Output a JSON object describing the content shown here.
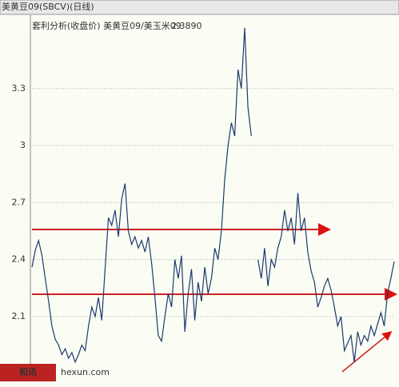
{
  "chart_data": {
    "type": "line",
    "header": "美黄豆09(SBCV)(日线)",
    "subtitle": "套利分析(收盘价) 美黄豆09/美玉米09",
    "last_value": "2.3890",
    "logo": "和讯",
    "watermark": "hexun.com",
    "color": "#1a3a6e",
    "values": [
      2.36,
      2.45,
      2.5,
      2.42,
      2.3,
      2.18,
      2.05,
      1.98,
      1.95,
      1.9,
      1.93,
      1.88,
      1.91,
      1.86,
      1.9,
      1.95,
      1.92,
      2.05,
      2.15,
      2.1,
      2.2,
      2.08,
      2.35,
      2.62,
      2.58,
      2.66,
      2.52,
      2.72,
      2.8,
      2.55,
      2.48,
      2.52,
      2.46,
      2.5,
      2.44,
      2.52,
      2.38,
      2.2,
      2.0,
      1.97,
      2.1,
      2.22,
      2.15,
      2.4,
      2.3,
      2.42,
      2.02,
      2.22,
      2.35,
      2.08,
      2.28,
      2.18,
      2.36,
      2.22,
      2.3,
      2.46,
      2.4,
      2.55,
      2.82,
      3.0,
      3.12,
      3.05,
      3.4,
      3.3,
      3.62,
      3.2,
      3.05,
      null,
      2.4,
      2.3,
      2.46,
      2.26,
      2.4,
      2.36,
      2.46,
      2.52,
      2.66,
      2.55,
      2.62,
      2.48,
      2.75,
      2.55,
      2.62,
      2.44,
      2.34,
      2.28,
      2.15,
      2.2,
      2.26,
      2.3,
      2.24,
      2.15,
      2.05,
      2.1,
      1.92,
      1.96,
      2.0,
      1.86,
      2.02,
      1.95,
      2.0,
      1.97,
      2.05,
      2.0,
      2.06,
      2.12,
      2.05,
      2.22,
      2.3,
      2.39
    ],
    "ylim": [
      1.83,
      3.64
    ],
    "yticks": [
      2.1,
      2.4,
      2.7,
      3.0,
      3.3
    ],
    "grid": true
  }
}
